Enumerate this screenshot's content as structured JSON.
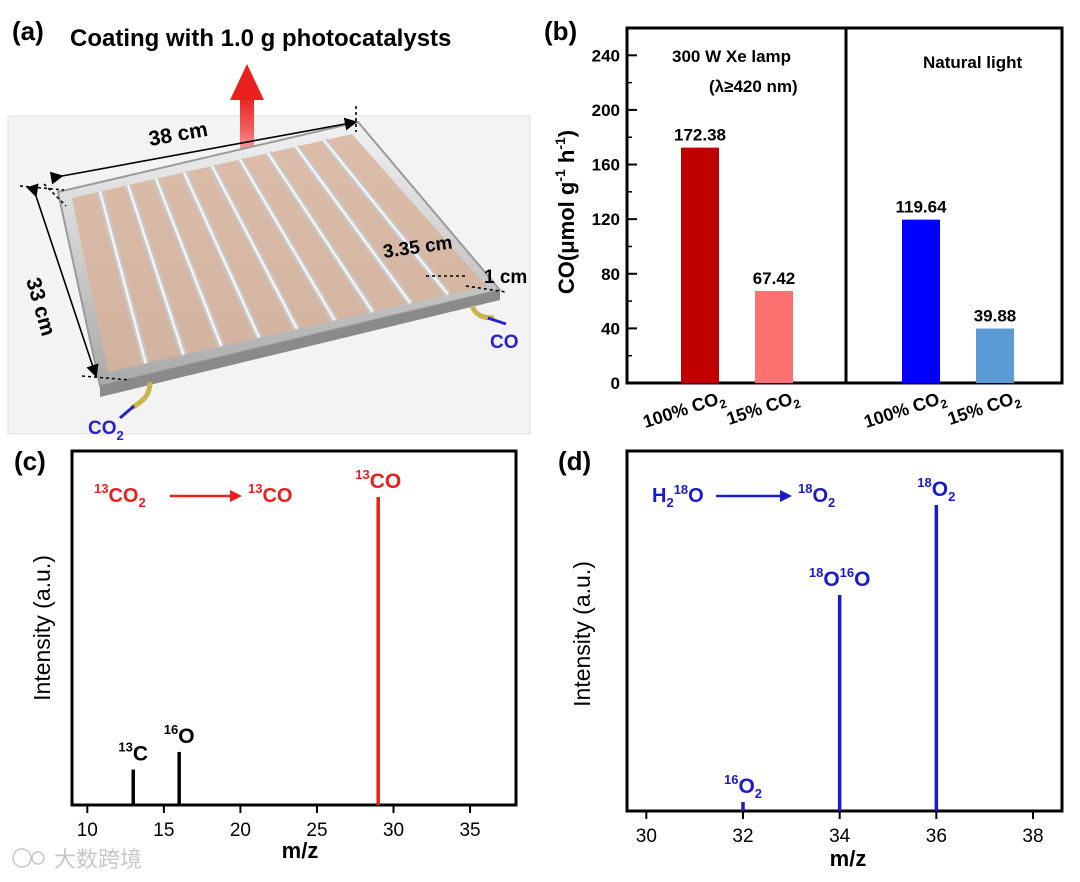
{
  "panels": {
    "a": {
      "label": "(a)",
      "title": "Coating with 1.0 g photocatalysts",
      "dim_width": "38 cm",
      "dim_depth": "33 cm",
      "dim_spacing": "3.35 cm",
      "dim_channel": "1 cm",
      "inlet": {
        "base": "CO",
        "sub": "2"
      },
      "outlet": "CO",
      "colors": {
        "arrow": "#e8201e",
        "gas": "#2a22c8",
        "coating": "#d8b49c"
      }
    },
    "b": {
      "label": "(b)",
      "left_title_1": "300 W Xe lamp",
      "left_title_2": "(λ≥420 nm)",
      "right_title": "Natural light",
      "ylabel": {
        "pre": "CO(μmol g",
        "sup1": "-1",
        "mid": " h",
        "sup2": "-1",
        "post": ")"
      }
    },
    "c": {
      "label": "(c)",
      "xlabel": "m/z",
      "ylabel": "Intensity (a.u.)"
    },
    "d": {
      "label": "(d)",
      "xlabel": "m/z",
      "ylabel": "Intensity (a.u.)"
    }
  },
  "watermark": "大数跨境",
  "chart_data": [
    {
      "id": "b",
      "type": "bar",
      "groups": [
        {
          "name": "300 W Xe lamp (λ≥420 nm)",
          "bars": [
            {
              "category": "100% CO2",
              "value": 172.38,
              "label": "172.38",
              "color": "#c00000"
            },
            {
              "category": "15% CO2",
              "value": 67.42,
              "label": "67.42",
              "color": "#ff7070"
            }
          ]
        },
        {
          "name": "Natural light",
          "bars": [
            {
              "category": "100% CO2",
              "value": 119.64,
              "label": "119.64",
              "color": "#0000ff"
            },
            {
              "category": "15% CO2",
              "value": 39.88,
              "label": "39.88",
              "color": "#5b9bd5"
            }
          ]
        }
      ],
      "categories": [
        {
          "pre": "100% CO",
          "sub": "2"
        },
        {
          "pre": "15% CO",
          "sub": "2"
        },
        {
          "pre": "100% CO",
          "sub": "2"
        },
        {
          "pre": "15% CO",
          "sub": "2"
        }
      ],
      "ylim": [
        0,
        260
      ],
      "yticks": [
        0,
        40,
        80,
        120,
        160,
        200,
        240
      ]
    },
    {
      "id": "c",
      "type": "stem",
      "xlabel": "m/z",
      "ylabel": "Intensity (a.u.)",
      "xlim": [
        9,
        38
      ],
      "xticks": [
        10,
        15,
        20,
        25,
        30,
        35
      ],
      "ylim": [
        0,
        1
      ],
      "annotation": {
        "left": {
          "sup": "13",
          "base": "CO",
          "sub": "2"
        },
        "right": {
          "sup": "13",
          "base": "CO"
        },
        "color": "#e8201e"
      },
      "peaks": [
        {
          "x": 13,
          "y": 0.1,
          "sup": "13",
          "base": "C",
          "sub": "",
          "color": "#000000"
        },
        {
          "x": 16,
          "y": 0.15,
          "sup": "16",
          "base": "O",
          "sub": "",
          "color": "#000000"
        },
        {
          "x": 29,
          "y": 0.87,
          "sup": "13",
          "base": "CO",
          "sub": "",
          "color": "#e8201e"
        }
      ]
    },
    {
      "id": "d",
      "type": "stem",
      "xlabel": "m/z",
      "ylabel": "Intensity (a.u.)",
      "xlim": [
        29.6,
        38.6
      ],
      "xticks": [
        30,
        32,
        34,
        36,
        38
      ],
      "ylim": [
        0,
        1
      ],
      "annotation": {
        "left": {
          "pre": "H",
          "presub": "2",
          "sup": "18",
          "base": "O"
        },
        "right": {
          "sup": "18",
          "base": "O",
          "sub": "2"
        },
        "color": "#1a1acd"
      },
      "peaks": [
        {
          "x": 32,
          "y": 0.025,
          "sup": "16",
          "base": "O",
          "sub": "2",
          "color": "#1a1acd"
        },
        {
          "x": 34,
          "y": 0.6,
          "sup": "18",
          "base": "O",
          "sub": "",
          "sup2": "16",
          "base2": "O",
          "color": "#1a1acd"
        },
        {
          "x": 36,
          "y": 0.85,
          "sup": "18",
          "base": "O",
          "sub": "2",
          "color": "#1a1acd"
        }
      ]
    }
  ]
}
